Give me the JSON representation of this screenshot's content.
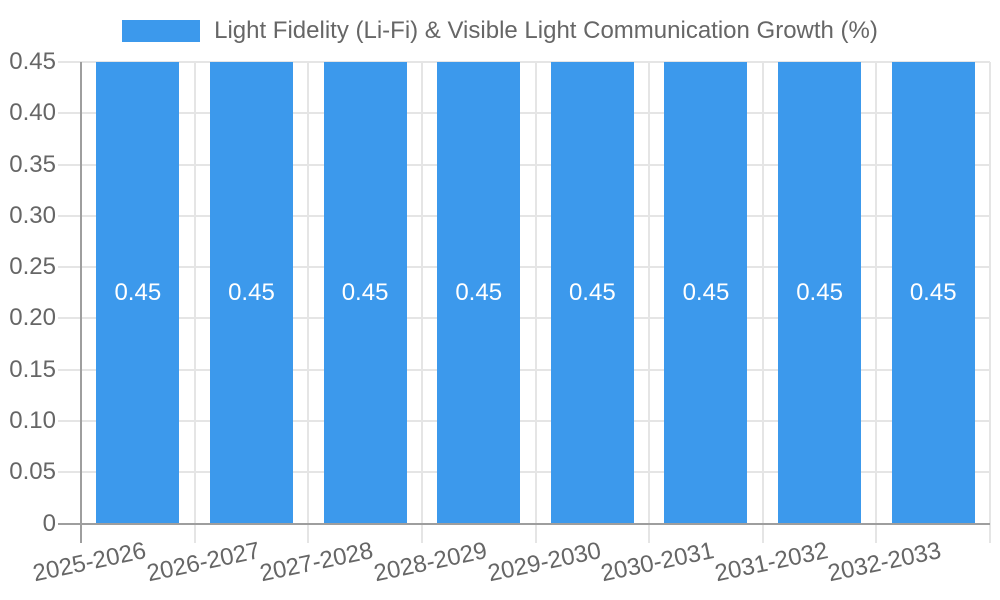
{
  "chart_data": {
    "type": "bar",
    "legend": {
      "position": "top",
      "label": "Light Fidelity (Li-Fi) & Visible Light Communication Growth (%)"
    },
    "categories": [
      "2025-2026",
      "2026-2027",
      "2027-2028",
      "2028-2029",
      "2029-2030",
      "2030-2031",
      "2031-2032",
      "2032-2033"
    ],
    "values": [
      0.45,
      0.45,
      0.45,
      0.45,
      0.45,
      0.45,
      0.45,
      0.45
    ],
    "bar_labels": [
      "0.45",
      "0.45",
      "0.45",
      "0.45",
      "0.45",
      "0.45",
      "0.45",
      "0.45"
    ],
    "yticks": [
      "0",
      "0.05",
      "0.10",
      "0.15",
      "0.20",
      "0.25",
      "0.30",
      "0.35",
      "0.40",
      "0.45"
    ],
    "ytick_values": [
      0,
      0.05,
      0.1,
      0.15,
      0.2,
      0.25,
      0.3,
      0.35,
      0.4,
      0.45
    ],
    "ylim": [
      0,
      0.45
    ],
    "grid": true,
    "colors": {
      "bar": "#3C99EC",
      "grid": "#E5E5E5",
      "axis": "#9E9E9E",
      "text": "#666666",
      "bar_label": "#FFFFFF"
    }
  }
}
